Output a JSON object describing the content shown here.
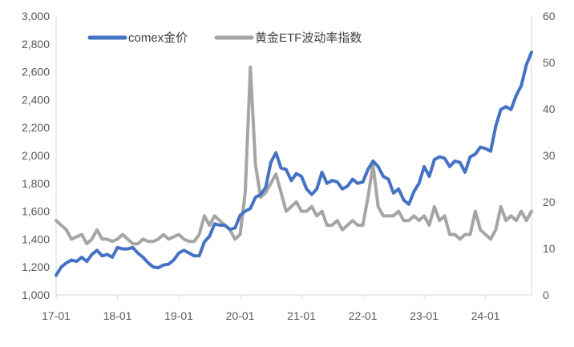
{
  "chart_data": {
    "type": "line",
    "title": "",
    "xlabel": "",
    "ylabel": "",
    "x_ticks": [
      "17-01",
      "18-01",
      "19-01",
      "20-01",
      "21-01",
      "22-01",
      "23-01",
      "24-01"
    ],
    "x_range": [
      "2017-01",
      "2024-10"
    ],
    "y_left": {
      "ticks": [
        "1,000",
        "1,200",
        "1,400",
        "1,600",
        "1,800",
        "2,000",
        "2,200",
        "2,400",
        "2,600",
        "2,800",
        "3,000"
      ],
      "range": [
        1000,
        3000
      ]
    },
    "y_right": {
      "ticks": [
        "0",
        "10",
        "20",
        "30",
        "40",
        "50",
        "60"
      ],
      "range": [
        0,
        60
      ]
    },
    "grid": false,
    "legend_position": "top",
    "series": [
      {
        "name": "comex金价",
        "axis": "left",
        "color": "#4472C4",
        "x": [
          "2017-01",
          "2017-02",
          "2017-03",
          "2017-04",
          "2017-05",
          "2017-06",
          "2017-07",
          "2017-08",
          "2017-09",
          "2017-10",
          "2017-11",
          "2017-12",
          "2018-01",
          "2018-02",
          "2018-03",
          "2018-04",
          "2018-05",
          "2018-06",
          "2018-07",
          "2018-08",
          "2018-09",
          "2018-10",
          "2018-11",
          "2018-12",
          "2019-01",
          "2019-02",
          "2019-03",
          "2019-04",
          "2019-05",
          "2019-06",
          "2019-07",
          "2019-08",
          "2019-09",
          "2019-10",
          "2019-11",
          "2019-12",
          "2020-01",
          "2020-02",
          "2020-03",
          "2020-04",
          "2020-05",
          "2020-06",
          "2020-07",
          "2020-08",
          "2020-09",
          "2020-10",
          "2020-11",
          "2020-12",
          "2021-01",
          "2021-02",
          "2021-03",
          "2021-04",
          "2021-05",
          "2021-06",
          "2021-07",
          "2021-08",
          "2021-09",
          "2021-10",
          "2021-11",
          "2021-12",
          "2022-01",
          "2022-02",
          "2022-03",
          "2022-04",
          "2022-05",
          "2022-06",
          "2022-07",
          "2022-08",
          "2022-09",
          "2022-10",
          "2022-11",
          "2022-12",
          "2023-01",
          "2023-02",
          "2023-03",
          "2023-04",
          "2023-05",
          "2023-06",
          "2023-07",
          "2023-08",
          "2023-09",
          "2023-10",
          "2023-11",
          "2023-12",
          "2024-01",
          "2024-02",
          "2024-03",
          "2024-04",
          "2024-05",
          "2024-06",
          "2024-07",
          "2024-08",
          "2024-09",
          "2024-10"
        ],
        "values": [
          1140,
          1200,
          1230,
          1250,
          1240,
          1270,
          1240,
          1290,
          1320,
          1280,
          1290,
          1270,
          1340,
          1330,
          1330,
          1340,
          1300,
          1270,
          1230,
          1200,
          1195,
          1215,
          1220,
          1250,
          1300,
          1320,
          1300,
          1280,
          1280,
          1380,
          1420,
          1510,
          1500,
          1500,
          1470,
          1480,
          1570,
          1600,
          1620,
          1700,
          1720,
          1770,
          1950,
          2020,
          1910,
          1900,
          1820,
          1870,
          1850,
          1760,
          1720,
          1760,
          1880,
          1800,
          1820,
          1810,
          1760,
          1780,
          1830,
          1800,
          1810,
          1900,
          1960,
          1920,
          1850,
          1830,
          1730,
          1760,
          1680,
          1650,
          1740,
          1800,
          1920,
          1850,
          1970,
          1990,
          1980,
          1920,
          1960,
          1950,
          1880,
          1990,
          2010,
          2060,
          2050,
          2030,
          2210,
          2330,
          2350,
          2330,
          2430,
          2500,
          2650,
          2740
        ]
      },
      {
        "name": "黄金ETF波动率指数",
        "axis": "right",
        "color": "#A5A5A5",
        "x": [
          "2017-01",
          "2017-02",
          "2017-03",
          "2017-04",
          "2017-05",
          "2017-06",
          "2017-07",
          "2017-08",
          "2017-09",
          "2017-10",
          "2017-11",
          "2017-12",
          "2018-01",
          "2018-02",
          "2018-03",
          "2018-04",
          "2018-05",
          "2018-06",
          "2018-07",
          "2018-08",
          "2018-09",
          "2018-10",
          "2018-11",
          "2018-12",
          "2019-01",
          "2019-02",
          "2019-03",
          "2019-04",
          "2019-05",
          "2019-06",
          "2019-07",
          "2019-08",
          "2019-09",
          "2019-10",
          "2019-11",
          "2019-12",
          "2020-01",
          "2020-02",
          "2020-03",
          "2020-04",
          "2020-05",
          "2020-06",
          "2020-07",
          "2020-08",
          "2020-09",
          "2020-10",
          "2020-11",
          "2020-12",
          "2021-01",
          "2021-02",
          "2021-03",
          "2021-04",
          "2021-05",
          "2021-06",
          "2021-07",
          "2021-08",
          "2021-09",
          "2021-10",
          "2021-11",
          "2021-12",
          "2022-01",
          "2022-02",
          "2022-03",
          "2022-04",
          "2022-05",
          "2022-06",
          "2022-07",
          "2022-08",
          "2022-09",
          "2022-10",
          "2022-11",
          "2022-12",
          "2023-01",
          "2023-02",
          "2023-03",
          "2023-04",
          "2023-05",
          "2023-06",
          "2023-07",
          "2023-08",
          "2023-09",
          "2023-10",
          "2023-11",
          "2023-12",
          "2024-01",
          "2024-02",
          "2024-03",
          "2024-04",
          "2024-05",
          "2024-06",
          "2024-07",
          "2024-08",
          "2024-09",
          "2024-10"
        ],
        "values": [
          16,
          15,
          14,
          12,
          12.5,
          13,
          11,
          12,
          14,
          12,
          12,
          11.5,
          12,
          13,
          12,
          11,
          11,
          12,
          11.5,
          11.5,
          12,
          13,
          12,
          12.5,
          13,
          12,
          11.5,
          11.5,
          13,
          17,
          15,
          17,
          16,
          15,
          14,
          12,
          13,
          22,
          49,
          28,
          21,
          22,
          24,
          26,
          22,
          18,
          19,
          20,
          18,
          18,
          19,
          17,
          18,
          15,
          15,
          16,
          14,
          15,
          16,
          15,
          15,
          21,
          28,
          19,
          17,
          17,
          17,
          18,
          16,
          16,
          17,
          16,
          17,
          15,
          19,
          16,
          17,
          13,
          13,
          12,
          13,
          13,
          18,
          14,
          13,
          12,
          14,
          19,
          16,
          17,
          16,
          18,
          16,
          18
        ]
      }
    ]
  }
}
